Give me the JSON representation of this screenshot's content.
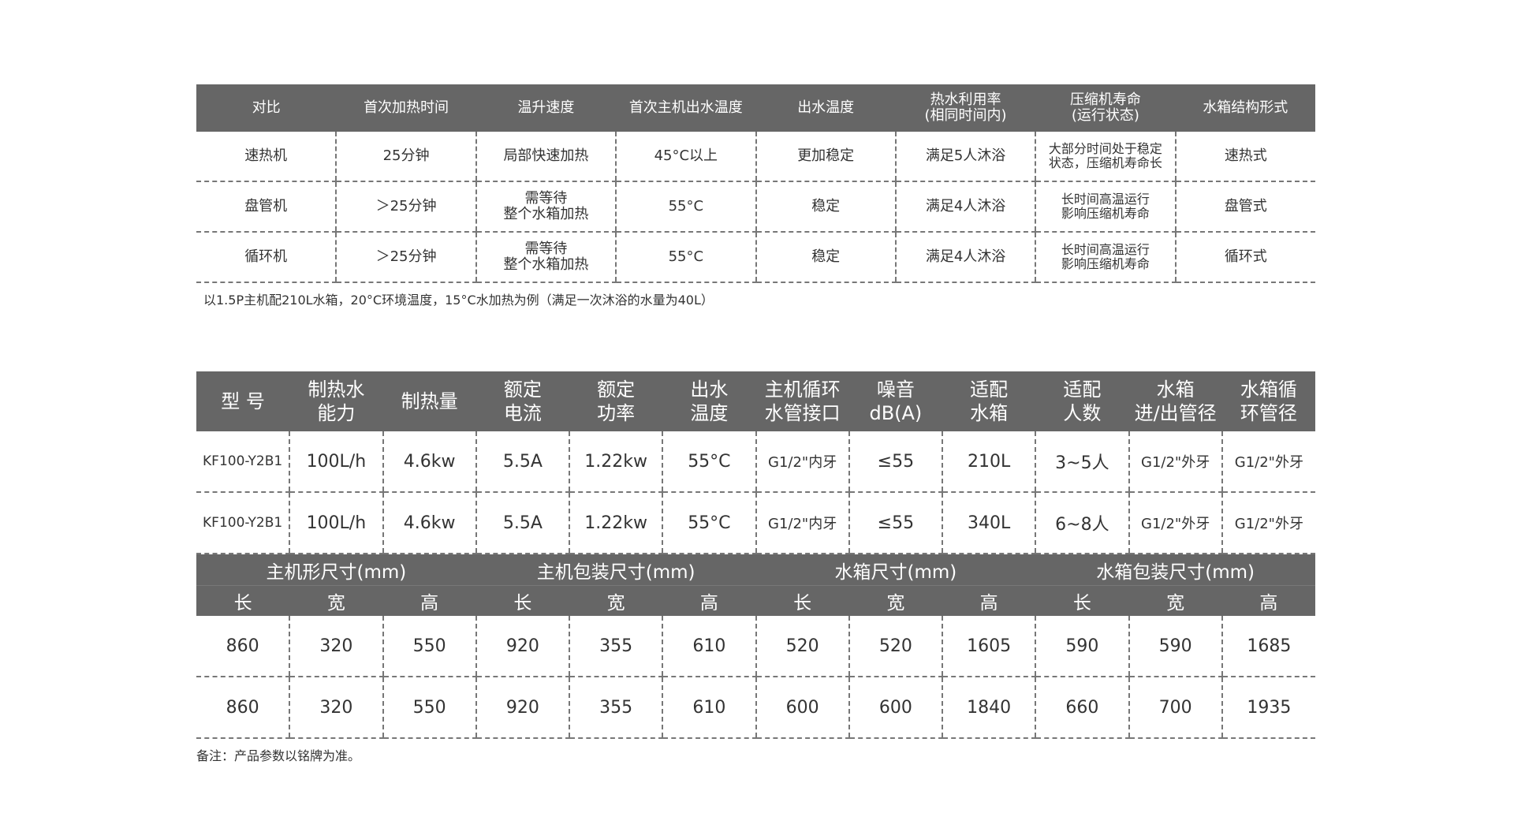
{
  "comparison": {
    "headers": [
      "对比",
      "首次加热时间",
      "温升速度",
      "首次主机出水温度",
      "出水温度",
      "热水利用率\n(相同时间内)",
      "压缩机寿命\n(运行状态)",
      "水箱结构形式"
    ],
    "rows": [
      [
        "速热机",
        "25分钟",
        "局部快速加热",
        "45°C以上",
        "更加稳定",
        "满足5人沐浴",
        "大部分时间处于稳定\n状态，压缩机寿命长",
        "速热式"
      ],
      [
        "盘管机",
        "＞25分钟",
        "需等待\n整个水箱加热",
        "55°C",
        "稳定",
        "满足4人沐浴",
        "长时间高温运行\n影响压缩机寿命",
        "盘管式"
      ],
      [
        "循环机",
        "＞25分钟",
        "需等待\n整个水箱加热",
        "55°C",
        "稳定",
        "满足4人沐浴",
        "长时间高温运行\n影响压缩机寿命",
        "循环式"
      ]
    ],
    "note": "以1.5P主机配210L水箱，20°C环境温度，15°C水加热为例（满足一次沐浴的水量为40L）"
  },
  "specs": {
    "headers": [
      "型 号",
      "制热水\n能力",
      "制热量",
      "额定\n电流",
      "额定\n功率",
      "出水\n温度",
      "主机循环\n水管接口",
      "噪音\ndB(A)",
      "适配\n水箱",
      "适配\n人数",
      "水箱\n进/出管径",
      "水箱循\n环管径"
    ],
    "rows": [
      [
        "KF100-Y2B1",
        "100L/h",
        "4.6kw",
        "5.5A",
        "1.22kw",
        "55°C",
        "G1/2\"内牙",
        "≤55",
        "210L",
        "3~5人",
        "G1/2\"外牙",
        "G1/2\"外牙"
      ],
      [
        "KF100-Y2B1",
        "100L/h",
        "4.6kw",
        "5.5A",
        "1.22kw",
        "55°C",
        "G1/2\"内牙",
        "≤55",
        "340L",
        "6~8人",
        "G1/2\"外牙",
        "G1/2\"外牙"
      ]
    ],
    "dimension_groups": [
      "主机形尺寸(mm)",
      "主机包装尺寸(mm)",
      "水箱尺寸(mm)",
      "水箱包装尺寸(mm)"
    ],
    "dimension_subheaders": [
      "长",
      "宽",
      "高",
      "长",
      "宽",
      "高",
      "长",
      "宽",
      "高",
      "长",
      "宽",
      "高"
    ],
    "dimension_rows": [
      [
        "860",
        "320",
        "550",
        "920",
        "355",
        "610",
        "520",
        "520",
        "1605",
        "590",
        "590",
        "1685"
      ],
      [
        "860",
        "320",
        "550",
        "920",
        "355",
        "610",
        "600",
        "600",
        "1840",
        "660",
        "700",
        "1935"
      ]
    ],
    "note": "备注：产品参数以铭牌为准。"
  },
  "colors": {
    "header_bg": "#666666",
    "header_text": "#ffffff",
    "divider": "#777777"
  }
}
